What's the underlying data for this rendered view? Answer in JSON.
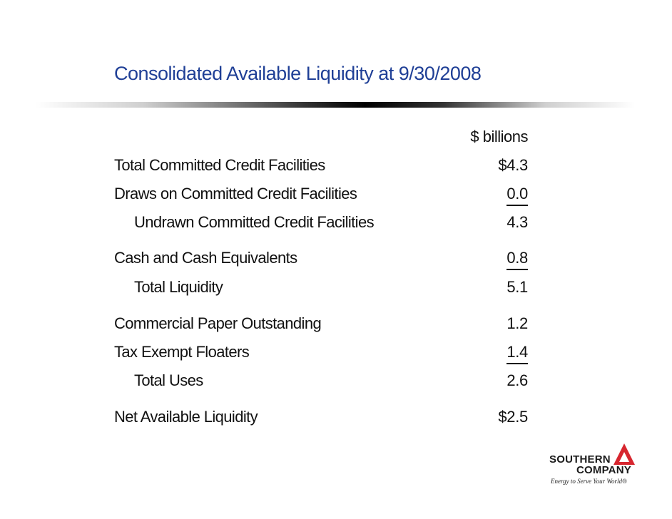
{
  "title": "Consolidated Available Liquidity at 9/30/2008",
  "unit_header": "$ billions",
  "rows": [
    {
      "label": "Total Committed Credit Facilities",
      "value": "$4.3"
    },
    {
      "label": "Draws on Committed Credit Facilities",
      "value": "0.0"
    },
    {
      "label": "Undrawn Committed Credit Facilities",
      "value": "4.3"
    },
    {
      "label": "Cash and Cash Equivalents",
      "value": "0.8"
    },
    {
      "label": "Total Liquidity",
      "value": "5.1"
    },
    {
      "label": "Commercial Paper Outstanding",
      "value": "1.2"
    },
    {
      "label": "Tax Exempt Floaters",
      "value": "1.4"
    },
    {
      "label": "Total Uses",
      "value": "2.6"
    },
    {
      "label": "Net Available Liquidity",
      "value": "$2.5"
    }
  ],
  "logo": {
    "line1": "SOUTHERN",
    "line2": "COMPANY",
    "tagline": "Energy to Serve Your World®",
    "accent_color": "#d7262f"
  }
}
